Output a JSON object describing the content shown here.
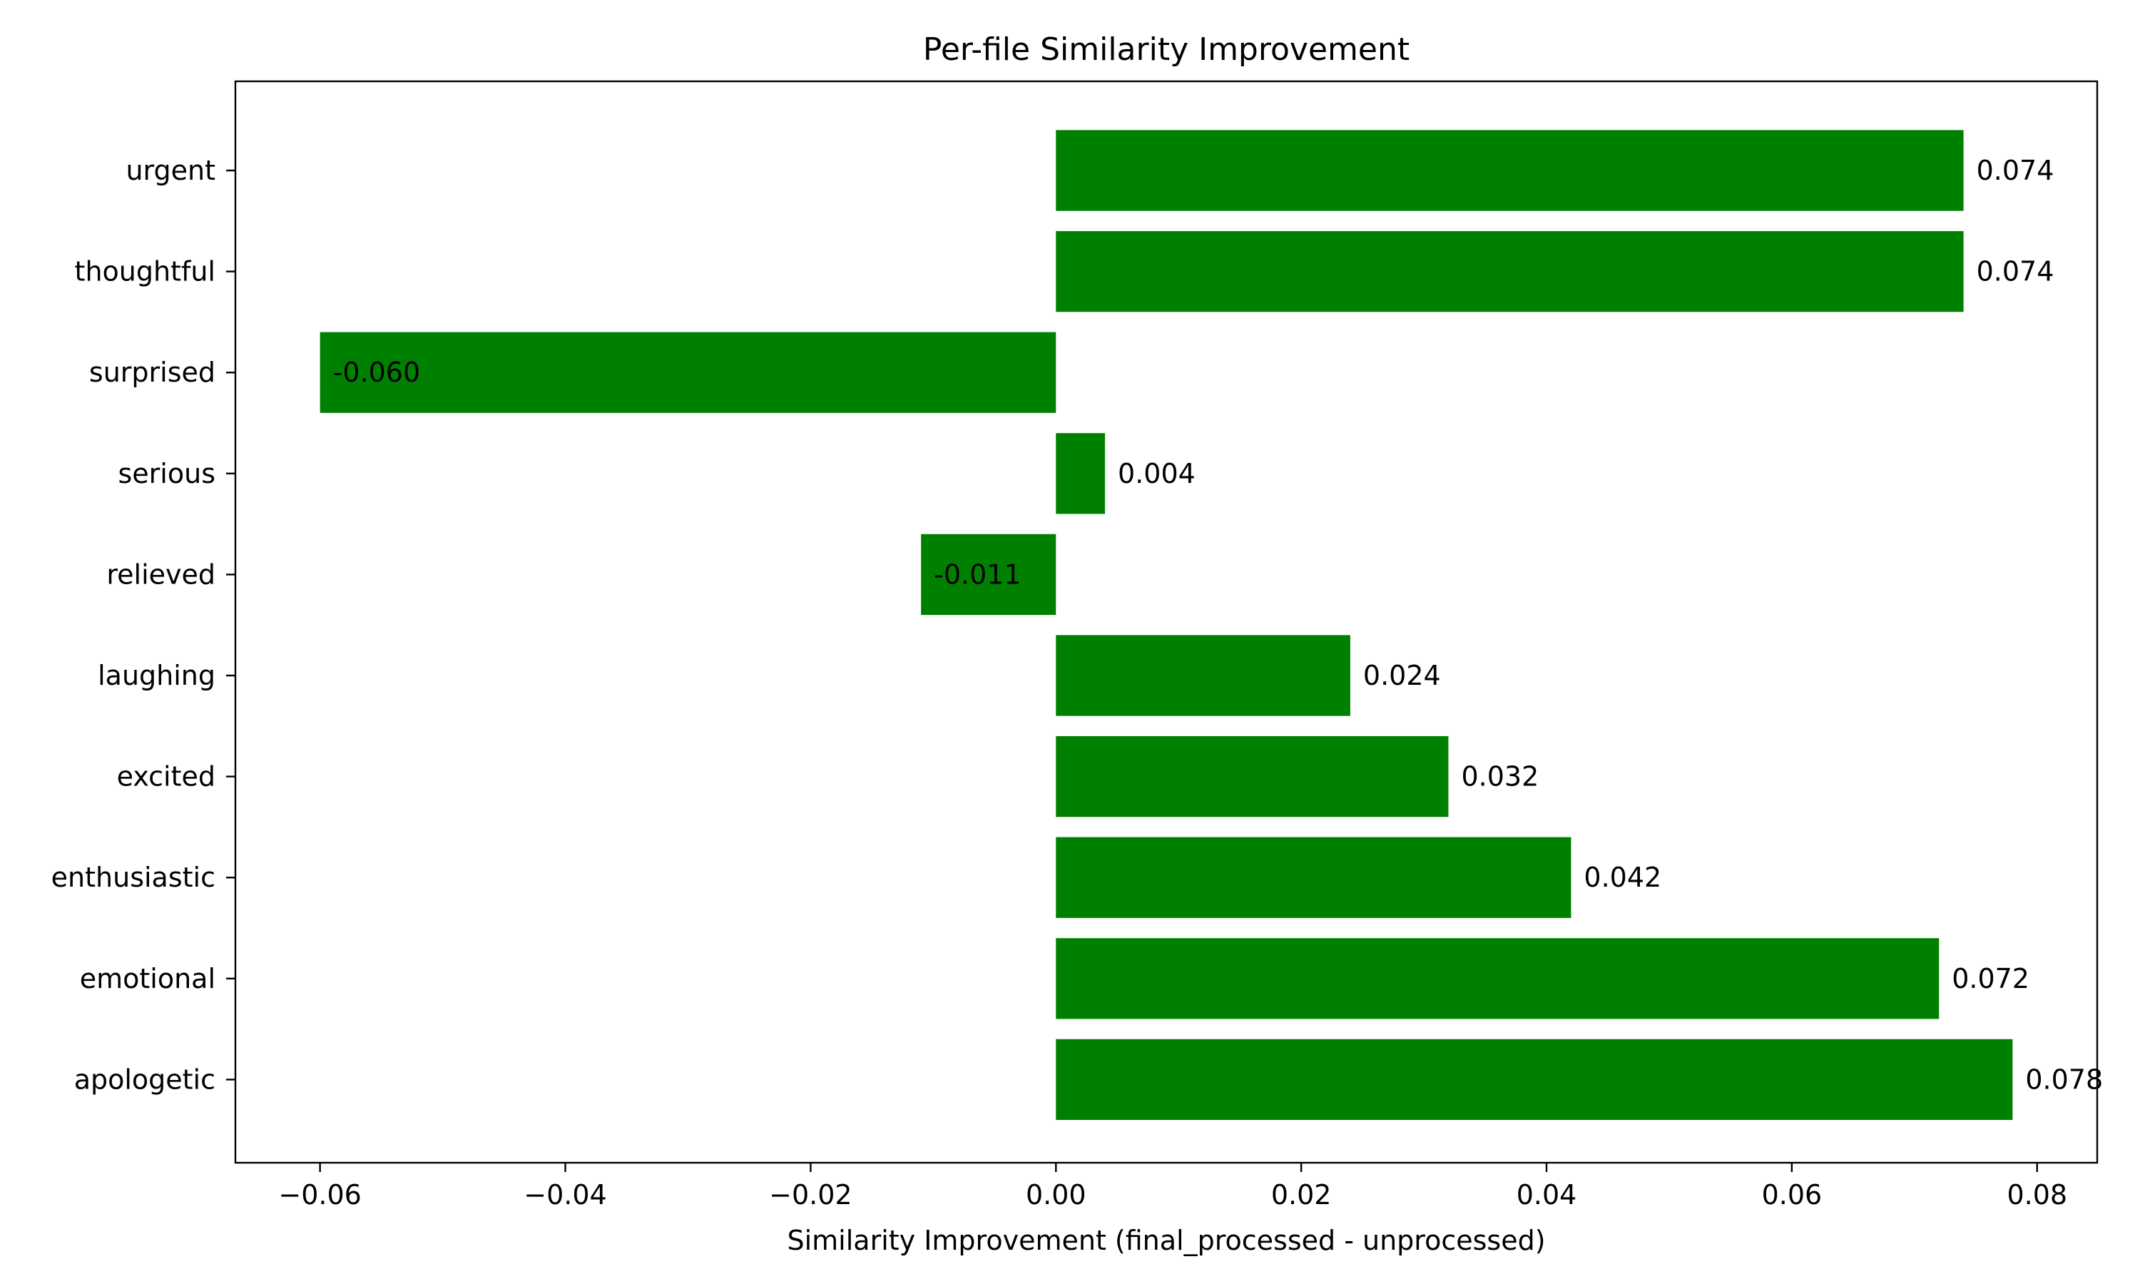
{
  "chart_data": {
    "type": "bar",
    "orientation": "horizontal",
    "title": "Per-file Similarity Improvement",
    "xlabel": "Similarity Improvement (final_processed - unprocessed)",
    "ylabel": "",
    "categories": [
      "urgent",
      "thoughtful",
      "surprised",
      "serious",
      "relieved",
      "laughing",
      "excited",
      "enthusiastic",
      "emotional",
      "apologetic"
    ],
    "values": [
      0.074,
      0.074,
      -0.06,
      0.004,
      -0.011,
      0.024,
      0.032,
      0.042,
      0.072,
      0.078
    ],
    "value_labels": [
      "0.074",
      "0.074",
      "-0.060",
      "0.004",
      "-0.011",
      "0.024",
      "0.032",
      "0.042",
      "0.072",
      "0.078"
    ],
    "xlim": [
      -0.0669,
      0.0849
    ],
    "xticks": [
      -0.06,
      -0.04,
      -0.02,
      0.0,
      0.02,
      0.04,
      0.06,
      0.08
    ],
    "xtick_labels": [
      "−0.06",
      "−0.04",
      "−0.02",
      "0.00",
      "0.02",
      "0.04",
      "0.06",
      "0.08"
    ],
    "bar_color": "#008000",
    "grid": false,
    "legend": "none"
  }
}
